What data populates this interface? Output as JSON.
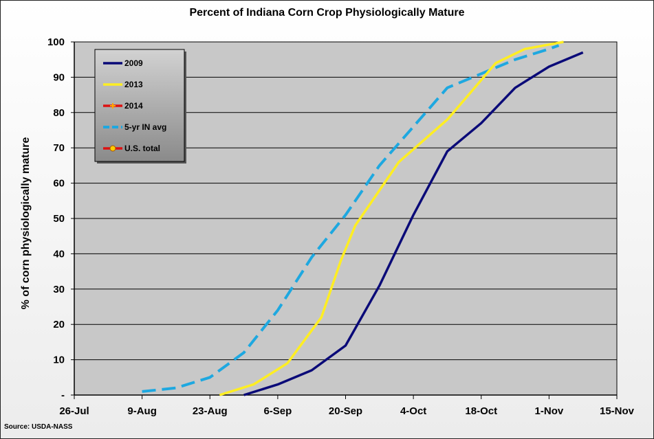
{
  "chart_data": {
    "type": "line",
    "title": "Percent of Indiana Corn Crop Physiologically Mature",
    "ylabel": "% of corn physiologically mature",
    "xlabel": "",
    "source": "Source: USDA-NASS",
    "x_tick_labels": [
      "26-Jul",
      "9-Aug",
      "23-Aug",
      "6-Sep",
      "20-Sep",
      "4-Oct",
      "18-Oct",
      "1-Nov",
      "15-Nov"
    ],
    "x_tick_days": [
      0,
      14,
      28,
      42,
      56,
      70,
      84,
      98,
      112
    ],
    "y_tick_labels": [
      "-",
      "10",
      "20",
      "30",
      "40",
      "50",
      "60",
      "70",
      "80",
      "90",
      "100"
    ],
    "ylim": [
      0,
      100
    ],
    "grid": true,
    "legend_position": "top-left",
    "series": [
      {
        "name": "2009",
        "color": "#0a0a78",
        "dash": false,
        "x": [
          35,
          42,
          49,
          56,
          63,
          70,
          77,
          84,
          91,
          98,
          105
        ],
        "y": [
          0,
          3,
          7,
          14,
          31,
          51,
          69,
          77,
          87,
          93,
          97
        ]
      },
      {
        "name": "2013",
        "color": "#ffee22",
        "dash": false,
        "x": [
          30,
          37,
          44,
          51,
          55,
          58,
          62,
          67,
          72,
          77,
          82,
          87,
          93,
          101
        ],
        "y": [
          0,
          3,
          9,
          22,
          38,
          48,
          56,
          66,
          72,
          78,
          86,
          94,
          98,
          100
        ]
      },
      {
        "name": "2014",
        "color": "#dd1111",
        "marker_color": "#ffaa00",
        "dash": false,
        "x": [],
        "y": []
      },
      {
        "name": "5-yr IN avg",
        "color": "#1ea8e0",
        "dash": true,
        "x": [
          14,
          21,
          28,
          35,
          42,
          49,
          56,
          63,
          70,
          77,
          84,
          91,
          98,
          100
        ],
        "y": [
          1,
          2,
          5,
          12,
          24,
          39,
          51,
          65,
          76,
          87,
          91,
          95,
          98,
          99
        ]
      },
      {
        "name": "U.S. total",
        "color": "#dd1111",
        "marker_color": "#ffcc00",
        "dash": false,
        "x": [],
        "y": []
      }
    ]
  }
}
